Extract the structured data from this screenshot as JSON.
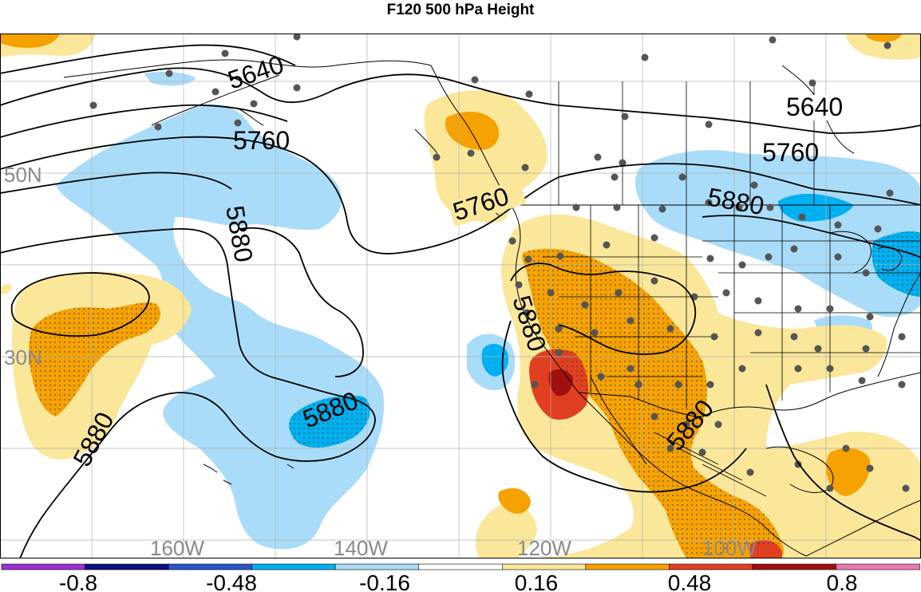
{
  "title": "F120 500 hPa Height",
  "map": {
    "latitude_labels": [
      "50N",
      "30N"
    ],
    "longitude_labels": [
      "160W",
      "140W",
      "120W",
      "100W"
    ],
    "contour_labels": [
      "5640",
      "5640",
      "5760",
      "5760",
      "5760",
      "5880",
      "5880",
      "5880",
      "5880",
      "5880",
      "5880"
    ]
  },
  "colorbar": {
    "tick_labels": [
      "-0.8",
      "-0.48",
      "-0.16",
      "0.16",
      "0.48",
      "0.8"
    ],
    "colors": [
      "#9b30d0",
      "#0a0f80",
      "#2a55c8",
      "#00b0f0",
      "#a9dcf8",
      "#ffffff",
      "#fbe79a",
      "#f5a200",
      "#e04020",
      "#a01010",
      "#e87ab0"
    ]
  },
  "anomaly_colors": {
    "neg_strong": "#00b0f0",
    "neg_weak": "#a9dcf8",
    "pos_weak": "#fbe79a",
    "pos_mid": "#f5a200",
    "pos_strong": "#e04020",
    "pos_max": "#a01010"
  }
}
